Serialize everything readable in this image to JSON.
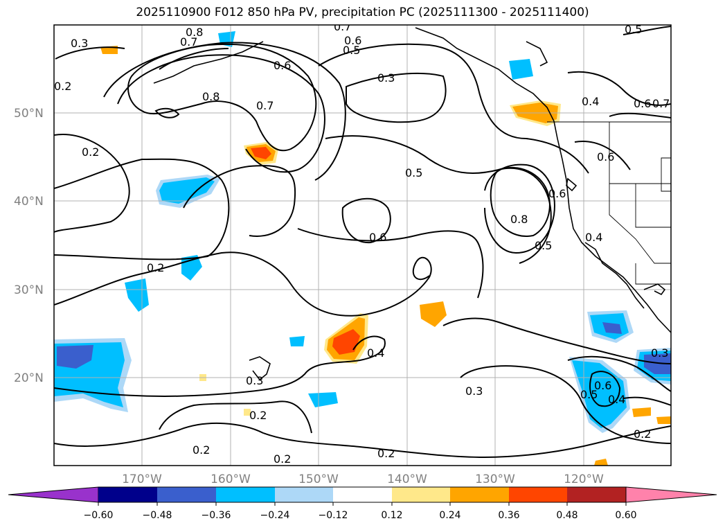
{
  "title": "2025110900 F012 850 hPa PV, precipitation PC (2025111300 - 2025111400)",
  "map": {
    "lat_labels": [
      "50°N",
      "40°N",
      "30°N",
      "20°N"
    ],
    "lon_labels": [
      "170°W",
      "160°W",
      "150°W",
      "140°W",
      "130°W",
      "120°W"
    ],
    "contour_labels": [
      "0.3",
      "0.8",
      "0.7",
      "0.7",
      "0.6",
      "0.5",
      "0.6",
      "0.3",
      "0.5",
      "0.2",
      "0.8",
      "0.7",
      "0.6",
      "0.4",
      "0.6",
      "0.7",
      "0.2",
      "0.5",
      "0.6",
      "0.8",
      "0.6",
      "0.5",
      "0.4",
      "0.3",
      "0.4",
      "0.3",
      "0.2",
      "0.3",
      "0.6",
      "0.5",
      "0.4",
      "0.2",
      "0.2",
      "0.2",
      "0.2",
      "0.2"
    ],
    "colors": {
      "neg_strong": "#3a5fcd",
      "neg_mid": "#00bfff",
      "neg_weak": "#add8f7",
      "pos_weak": "#ffe88a",
      "pos_mid": "#ffa500",
      "pos_strong": "#ff4500"
    }
  },
  "colorbar": {
    "ticks": [
      "−0.60",
      "−0.48",
      "−0.36",
      "−0.24",
      "−0.12",
      "0.12",
      "0.24",
      "0.36",
      "0.48",
      "0.60"
    ],
    "colors": [
      "#9932cc",
      "#00008b",
      "#3a5fcd",
      "#00bfff",
      "#add8f7",
      "#ffffff",
      "#ffe88a",
      "#ffa500",
      "#ff4500",
      "#b22222",
      "#ff82ab"
    ]
  }
}
